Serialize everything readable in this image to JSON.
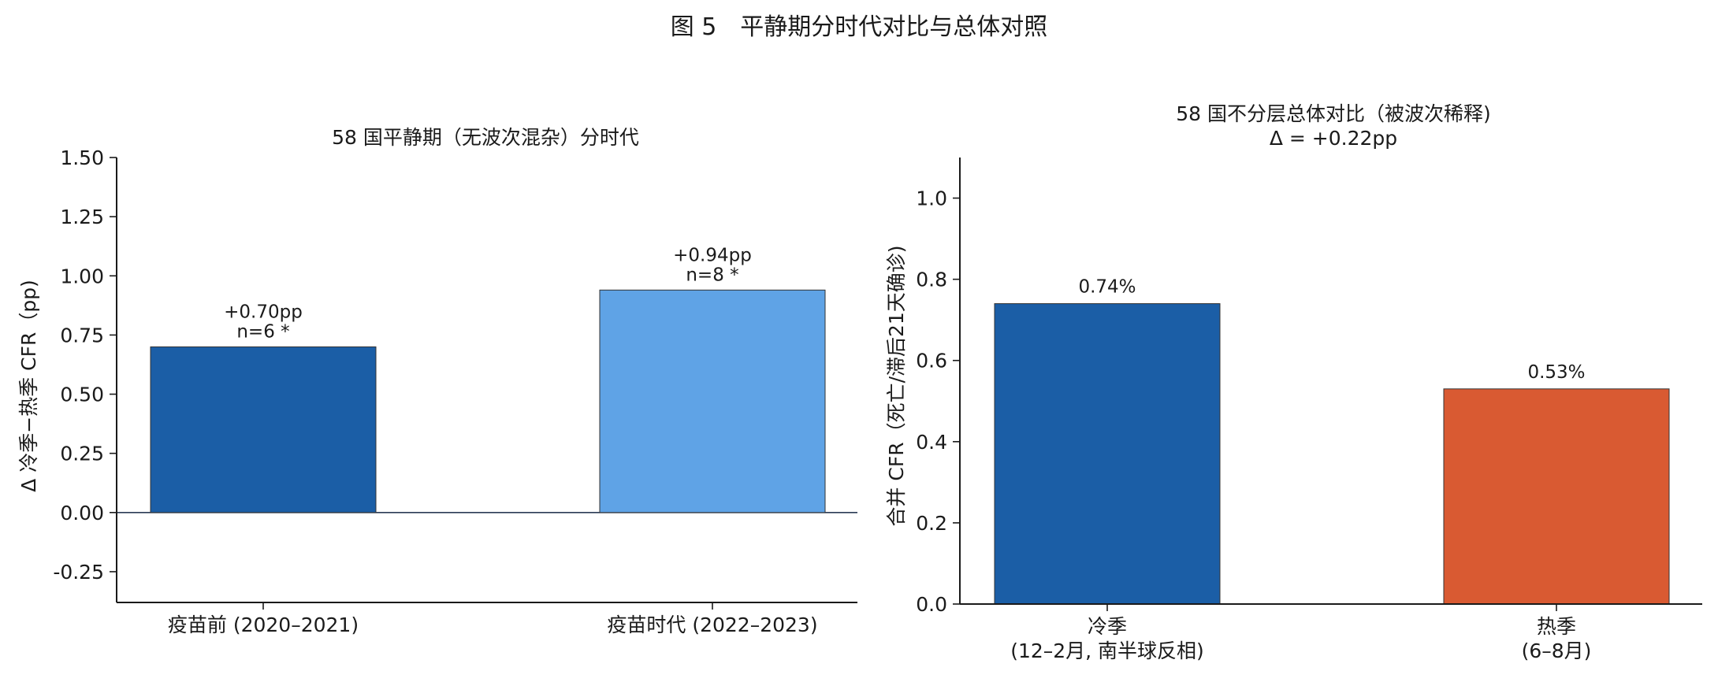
{
  "figure_title": "图 5　平静期分时代对比与总体对照",
  "chart_data": [
    {
      "type": "bar",
      "title": "58 国平静期（无波次混杂）分时代",
      "ylabel": "Δ 冷季−热季 CFR（pp)",
      "xlabel": "",
      "categories": [
        "疫苗前 (2020–2021)",
        "疫苗时代 (2022–2023)"
      ],
      "values": [
        0.7,
        0.94
      ],
      "annotations": [
        {
          "value_label": "+0.70pp",
          "n_label": "n=6  *"
        },
        {
          "value_label": "+0.94pp",
          "n_label": "n=8  *"
        }
      ],
      "colors": [
        "#1b5ea6",
        "#5fa3e6"
      ],
      "ylim": [
        -0.38,
        1.5
      ],
      "yticks": [
        -0.25,
        0.0,
        0.25,
        0.5,
        0.75,
        1.0,
        1.25,
        1.5
      ],
      "ytick_labels": [
        "-0.25",
        "0.00",
        "0.25",
        "0.50",
        "0.75",
        "1.00",
        "1.25",
        "1.50"
      ],
      "zero_line": true,
      "grid": false
    },
    {
      "type": "bar",
      "title": "58 国不分层总体对比（被波次稀释)",
      "subtitle": "Δ = +0.22pp",
      "ylabel": "合并 CFR（死亡/滞后21天确诊)",
      "xlabel": "",
      "categories": [
        [
          "冷季",
          "(12–2月, 南半球反相)"
        ],
        [
          "热季",
          "(6–8月)"
        ]
      ],
      "values": [
        0.74,
        0.53
      ],
      "data_labels": [
        "0.74%",
        "0.53%"
      ],
      "colors": [
        "#1b5ea6",
        "#d95a32"
      ],
      "ylim": [
        0.0,
        1.1
      ],
      "yticks": [
        0.0,
        0.2,
        0.4,
        0.6,
        0.8,
        1.0
      ],
      "ytick_labels": [
        "0.0",
        "0.2",
        "0.4",
        "0.6",
        "0.8",
        "1.0"
      ],
      "grid": false
    }
  ]
}
